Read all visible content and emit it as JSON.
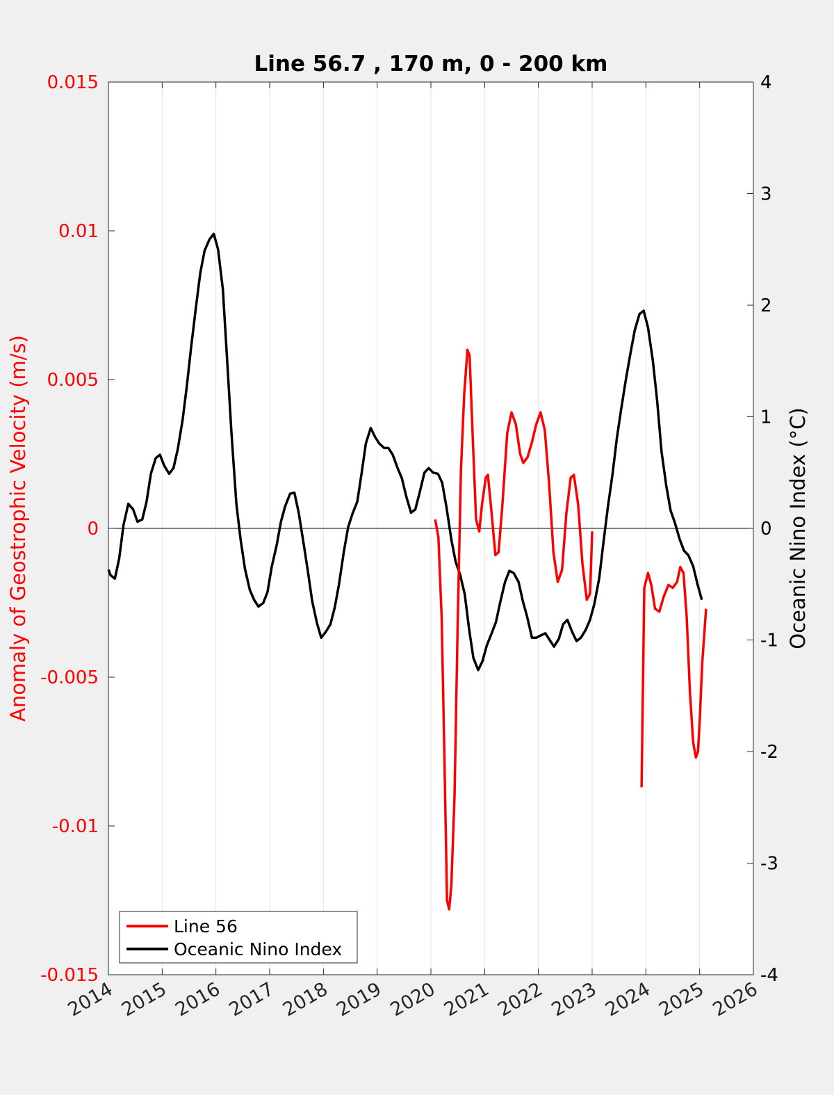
{
  "chart_data": {
    "type": "line",
    "title": "Line 56.7 , 170 m, 0 - 200 km",
    "xlabel": "",
    "ylabel_left": "Anomaly of Geostrophic Velocity (m/s)",
    "ylabel_right": "Oceanic Nino Index (°C)",
    "xlim": [
      2014,
      2026
    ],
    "ylim_left": [
      -0.015,
      0.015
    ],
    "ylim_right": [
      -4,
      4
    ],
    "x_ticks": [
      "2014",
      "2015",
      "2016",
      "2017",
      "2018",
      "2019",
      "2020",
      "2021",
      "2022",
      "2023",
      "2024",
      "2025",
      "2026"
    ],
    "y_left_ticks": [
      "-0.015",
      "-0.01",
      "-0.005",
      "0",
      "0.005",
      "0.01",
      "0.015"
    ],
    "y_right_ticks": [
      "-4",
      "-3",
      "-2",
      "-1",
      "0",
      "1",
      "2",
      "3",
      "4"
    ],
    "grid": "vertical lines at x ticks",
    "legend_position": "bottom-left",
    "colors": {
      "line56": "#ff0000",
      "oni": "#000000",
      "left_axis": "#ff0000",
      "right_axis": "#000000"
    },
    "series": [
      {
        "name": "Line 56",
        "axis": "left",
        "segments": [
          [
            [
              2020.08,
              0.0003
            ],
            [
              2020.14,
              -0.0003
            ],
            [
              2020.2,
              -0.003
            ],
            [
              2020.25,
              -0.0075
            ],
            [
              2020.3,
              -0.0125
            ],
            [
              2020.34,
              -0.0128
            ],
            [
              2020.38,
              -0.012
            ],
            [
              2020.44,
              -0.009
            ],
            [
              2020.5,
              -0.003
            ],
            [
              2020.56,
              0.002
            ],
            [
              2020.62,
              0.0045
            ],
            [
              2020.68,
              0.006
            ],
            [
              2020.72,
              0.0058
            ],
            [
              2020.78,
              0.003
            ],
            [
              2020.84,
              0.0003
            ],
            [
              2020.9,
              -0.0001
            ],
            [
              2020.95,
              0.0008
            ],
            [
              2021.02,
              0.0017
            ],
            [
              2021.06,
              0.0018
            ],
            [
              2021.12,
              0.0007
            ],
            [
              2021.2,
              -0.0009
            ],
            [
              2021.26,
              -0.0008
            ],
            [
              2021.33,
              0.0008
            ],
            [
              2021.42,
              0.0032
            ],
            [
              2021.5,
              0.0039
            ],
            [
              2021.58,
              0.0035
            ],
            [
              2021.66,
              0.0025
            ],
            [
              2021.72,
              0.0022
            ],
            [
              2021.8,
              0.0024
            ],
            [
              2021.88,
              0.0029
            ],
            [
              2021.96,
              0.0035
            ],
            [
              2022.04,
              0.0039
            ],
            [
              2022.12,
              0.0033
            ],
            [
              2022.2,
              0.0015
            ],
            [
              2022.28,
              -0.0008
            ],
            [
              2022.36,
              -0.0018
            ],
            [
              2022.44,
              -0.0014
            ],
            [
              2022.52,
              0.0005
            ],
            [
              2022.6,
              0.0017
            ],
            [
              2022.66,
              0.0018
            ],
            [
              2022.74,
              0.0008
            ],
            [
              2022.82,
              -0.0012
            ],
            [
              2022.9,
              -0.0024
            ],
            [
              2022.96,
              -0.0022
            ],
            [
              2022.98,
              -0.0012
            ],
            [
              2023.0,
              -0.0001
            ]
          ],
          [
            [
              2023.92,
              -0.0087
            ],
            [
              2023.94,
              -0.006
            ],
            [
              2023.97,
              -0.002
            ],
            [
              2024.04,
              -0.0015
            ],
            [
              2024.1,
              -0.0019
            ],
            [
              2024.17,
              -0.0027
            ],
            [
              2024.25,
              -0.0028
            ],
            [
              2024.33,
              -0.0023
            ],
            [
              2024.42,
              -0.0019
            ],
            [
              2024.5,
              -0.002
            ],
            [
              2024.58,
              -0.0018
            ],
            [
              2024.64,
              -0.0013
            ],
            [
              2024.7,
              -0.0015
            ],
            [
              2024.76,
              -0.003
            ],
            [
              2024.82,
              -0.0055
            ],
            [
              2024.88,
              -0.0072
            ],
            [
              2024.93,
              -0.0077
            ],
            [
              2024.97,
              -0.0075
            ],
            [
              2025.0,
              -0.0065
            ],
            [
              2025.05,
              -0.0045
            ],
            [
              2025.12,
              -0.0027
            ]
          ]
        ]
      },
      {
        "name": "Oceanic Nino Index",
        "axis": "right",
        "points": [
          [
            2014.0,
            -0.37
          ],
          [
            2014.04,
            -0.42
          ],
          [
            2014.12,
            -0.45
          ],
          [
            2014.2,
            -0.27
          ],
          [
            2014.28,
            0.03
          ],
          [
            2014.37,
            0.22
          ],
          [
            2014.46,
            0.17
          ],
          [
            2014.54,
            0.06
          ],
          [
            2014.63,
            0.08
          ],
          [
            2014.71,
            0.24
          ],
          [
            2014.79,
            0.49
          ],
          [
            2014.88,
            0.63
          ],
          [
            2014.96,
            0.66
          ],
          [
            2015.04,
            0.56
          ],
          [
            2015.13,
            0.49
          ],
          [
            2015.21,
            0.54
          ],
          [
            2015.29,
            0.71
          ],
          [
            2015.38,
            0.97
          ],
          [
            2015.46,
            1.28
          ],
          [
            2015.54,
            1.63
          ],
          [
            2015.63,
            1.99
          ],
          [
            2015.71,
            2.29
          ],
          [
            2015.79,
            2.49
          ],
          [
            2015.88,
            2.59
          ],
          [
            2015.96,
            2.64
          ],
          [
            2016.04,
            2.5
          ],
          [
            2016.13,
            2.14
          ],
          [
            2016.21,
            1.5
          ],
          [
            2016.29,
            0.85
          ],
          [
            2016.38,
            0.22
          ],
          [
            2016.46,
            -0.1
          ],
          [
            2016.54,
            -0.36
          ],
          [
            2016.63,
            -0.55
          ],
          [
            2016.71,
            -0.64
          ],
          [
            2016.79,
            -0.7
          ],
          [
            2016.88,
            -0.67
          ],
          [
            2016.96,
            -0.57
          ],
          [
            2017.04,
            -0.34
          ],
          [
            2017.13,
            -0.15
          ],
          [
            2017.21,
            0.06
          ],
          [
            2017.29,
            0.2
          ],
          [
            2017.38,
            0.31
          ],
          [
            2017.46,
            0.32
          ],
          [
            2017.54,
            0.14
          ],
          [
            2017.63,
            -0.13
          ],
          [
            2017.71,
            -0.38
          ],
          [
            2017.79,
            -0.65
          ],
          [
            2017.88,
            -0.85
          ],
          [
            2017.96,
            -0.98
          ],
          [
            2018.04,
            -0.93
          ],
          [
            2018.13,
            -0.86
          ],
          [
            2018.21,
            -0.71
          ],
          [
            2018.29,
            -0.5
          ],
          [
            2018.38,
            -0.21
          ],
          [
            2018.46,
            0.01
          ],
          [
            2018.54,
            0.13
          ],
          [
            2018.63,
            0.24
          ],
          [
            2018.71,
            0.49
          ],
          [
            2018.79,
            0.76
          ],
          [
            2018.88,
            0.9
          ],
          [
            2018.96,
            0.82
          ],
          [
            2019.04,
            0.76
          ],
          [
            2019.13,
            0.72
          ],
          [
            2019.21,
            0.72
          ],
          [
            2019.29,
            0.66
          ],
          [
            2019.38,
            0.54
          ],
          [
            2019.46,
            0.45
          ],
          [
            2019.54,
            0.29
          ],
          [
            2019.63,
            0.14
          ],
          [
            2019.71,
            0.17
          ],
          [
            2019.79,
            0.32
          ],
          [
            2019.88,
            0.5
          ],
          [
            2019.96,
            0.54
          ],
          [
            2020.04,
            0.5
          ],
          [
            2020.13,
            0.49
          ],
          [
            2020.21,
            0.41
          ],
          [
            2020.29,
            0.19
          ],
          [
            2020.38,
            -0.1
          ],
          [
            2020.46,
            -0.3
          ],
          [
            2020.54,
            -0.41
          ],
          [
            2020.63,
            -0.59
          ],
          [
            2020.71,
            -0.9
          ],
          [
            2020.79,
            -1.16
          ],
          [
            2020.88,
            -1.27
          ],
          [
            2020.96,
            -1.19
          ],
          [
            2021.04,
            -1.05
          ],
          [
            2021.13,
            -0.94
          ],
          [
            2021.21,
            -0.84
          ],
          [
            2021.29,
            -0.66
          ],
          [
            2021.38,
            -0.48
          ],
          [
            2021.46,
            -0.38
          ],
          [
            2021.54,
            -0.4
          ],
          [
            2021.63,
            -0.48
          ],
          [
            2021.71,
            -0.65
          ],
          [
            2021.79,
            -0.79
          ],
          [
            2021.88,
            -0.98
          ],
          [
            2021.96,
            -0.98
          ],
          [
            2022.04,
            -0.96
          ],
          [
            2022.13,
            -0.94
          ],
          [
            2022.21,
            -1.0
          ],
          [
            2022.29,
            -1.06
          ],
          [
            2022.38,
            -0.99
          ],
          [
            2022.46,
            -0.86
          ],
          [
            2022.54,
            -0.82
          ],
          [
            2022.63,
            -0.93
          ],
          [
            2022.71,
            -1.01
          ],
          [
            2022.79,
            -0.98
          ],
          [
            2022.88,
            -0.91
          ],
          [
            2022.96,
            -0.82
          ],
          [
            2023.04,
            -0.68
          ],
          [
            2023.13,
            -0.45
          ],
          [
            2023.21,
            -0.13
          ],
          [
            2023.29,
            0.18
          ],
          [
            2023.38,
            0.49
          ],
          [
            2023.46,
            0.81
          ],
          [
            2023.54,
            1.07
          ],
          [
            2023.63,
            1.34
          ],
          [
            2023.71,
            1.56
          ],
          [
            2023.79,
            1.77
          ],
          [
            2023.88,
            1.92
          ],
          [
            2023.96,
            1.95
          ],
          [
            2024.04,
            1.8
          ],
          [
            2024.13,
            1.5
          ],
          [
            2024.21,
            1.14
          ],
          [
            2024.29,
            0.69
          ],
          [
            2024.38,
            0.38
          ],
          [
            2024.46,
            0.16
          ],
          [
            2024.54,
            0.05
          ],
          [
            2024.63,
            -0.1
          ],
          [
            2024.71,
            -0.2
          ],
          [
            2024.79,
            -0.24
          ],
          [
            2024.88,
            -0.34
          ],
          [
            2024.96,
            -0.5
          ],
          [
            2025.04,
            -0.64
          ]
        ]
      }
    ]
  }
}
